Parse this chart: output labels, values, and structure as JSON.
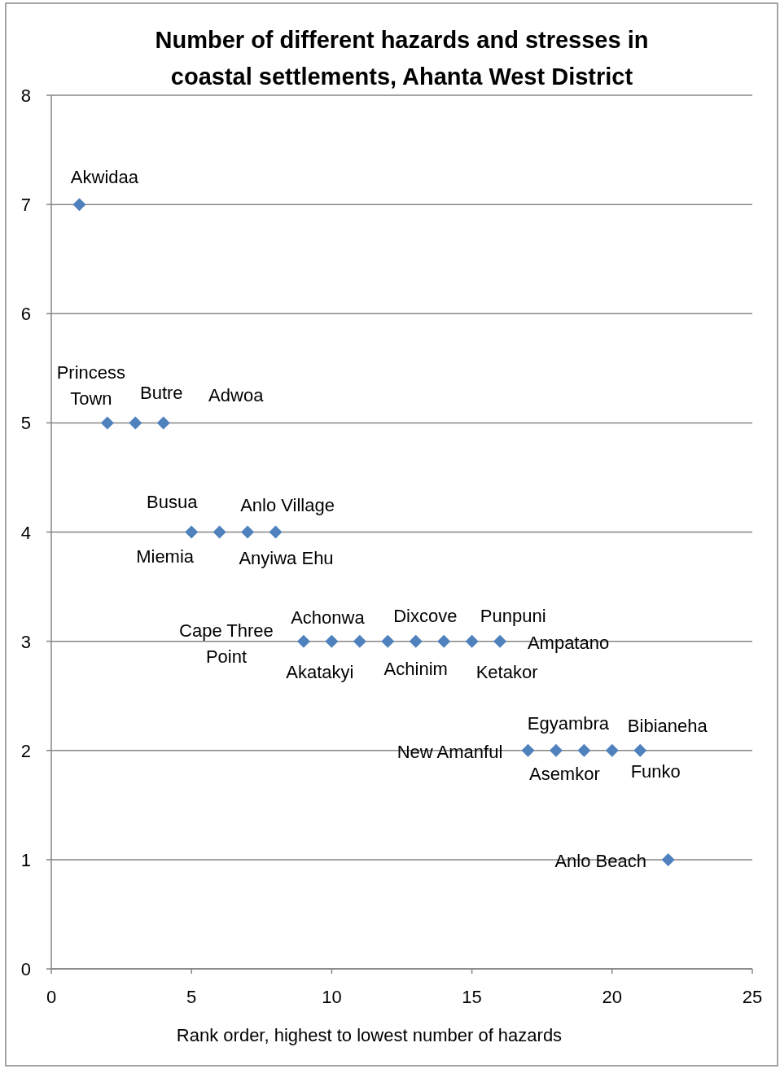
{
  "chart_data": {
    "type": "scatter",
    "title": "Number of different hazards and stresses in coastal settlements, Ahanta West District",
    "xlabel": "Rank order, highest to lowest number of hazards",
    "x": [
      1,
      2,
      3,
      4,
      5,
      6,
      7,
      8,
      9,
      10,
      11,
      12,
      13,
      14,
      15,
      16,
      17,
      18,
      19,
      20,
      21,
      22
    ],
    "series": [
      {
        "color": "#4f81bd",
        "values": [
          7,
          5,
          5,
          5,
          4,
          4,
          4,
          4,
          3,
          3,
          3,
          3,
          3,
          3,
          3,
          3,
          2,
          2,
          2,
          2,
          2,
          1
        ]
      }
    ],
    "xlim": [
      0,
      25
    ],
    "xticks": [
      0,
      5,
      10,
      15,
      20,
      25
    ],
    "ylim": [
      0,
      8
    ],
    "yticks": [
      0,
      1,
      2,
      3,
      4,
      5,
      6,
      7,
      8
    ],
    "grid": "y",
    "marker": "diamond",
    "annotations": [
      {
        "text": "Akwidaa",
        "x": 1,
        "y": 7
      },
      {
        "text": "Princess Town",
        "x": 2,
        "y": 5
      },
      {
        "text": "Butre",
        "x": 3,
        "y": 5
      },
      {
        "text": "Adwoa",
        "x": 4,
        "y": 5
      },
      {
        "text": "Busua",
        "x": 5,
        "y": 4
      },
      {
        "text": "Miemia",
        "x": 6,
        "y": 4
      },
      {
        "text": "Anlo Village",
        "x": 7,
        "y": 4
      },
      {
        "text": "Anyiwa Ehu",
        "x": 8,
        "y": 4
      },
      {
        "text": "Cape Three Point",
        "x": 9,
        "y": 3
      },
      {
        "text": "Achonwa",
        "x": 10,
        "y": 3
      },
      {
        "text": "Akatakyi",
        "x": 11,
        "y": 3
      },
      {
        "text": "Dixcove",
        "x": 12,
        "y": 3
      },
      {
        "text": "Achinim",
        "x": 13,
        "y": 3
      },
      {
        "text": "Punpuni",
        "x": 14,
        "y": 3
      },
      {
        "text": "Ketakor",
        "x": 15,
        "y": 3
      },
      {
        "text": "Ampatano",
        "x": 16,
        "y": 3
      },
      {
        "text": "New Amanful",
        "x": 17,
        "y": 2
      },
      {
        "text": "Egyambra",
        "x": 18,
        "y": 2
      },
      {
        "text": "Asemkor",
        "x": 19,
        "y": 2
      },
      {
        "text": "Bibianeha",
        "x": 20,
        "y": 2
      },
      {
        "text": "Funko",
        "x": 21,
        "y": 2
      },
      {
        "text": "Anlo Beach",
        "x": 22,
        "y": 1
      }
    ]
  }
}
